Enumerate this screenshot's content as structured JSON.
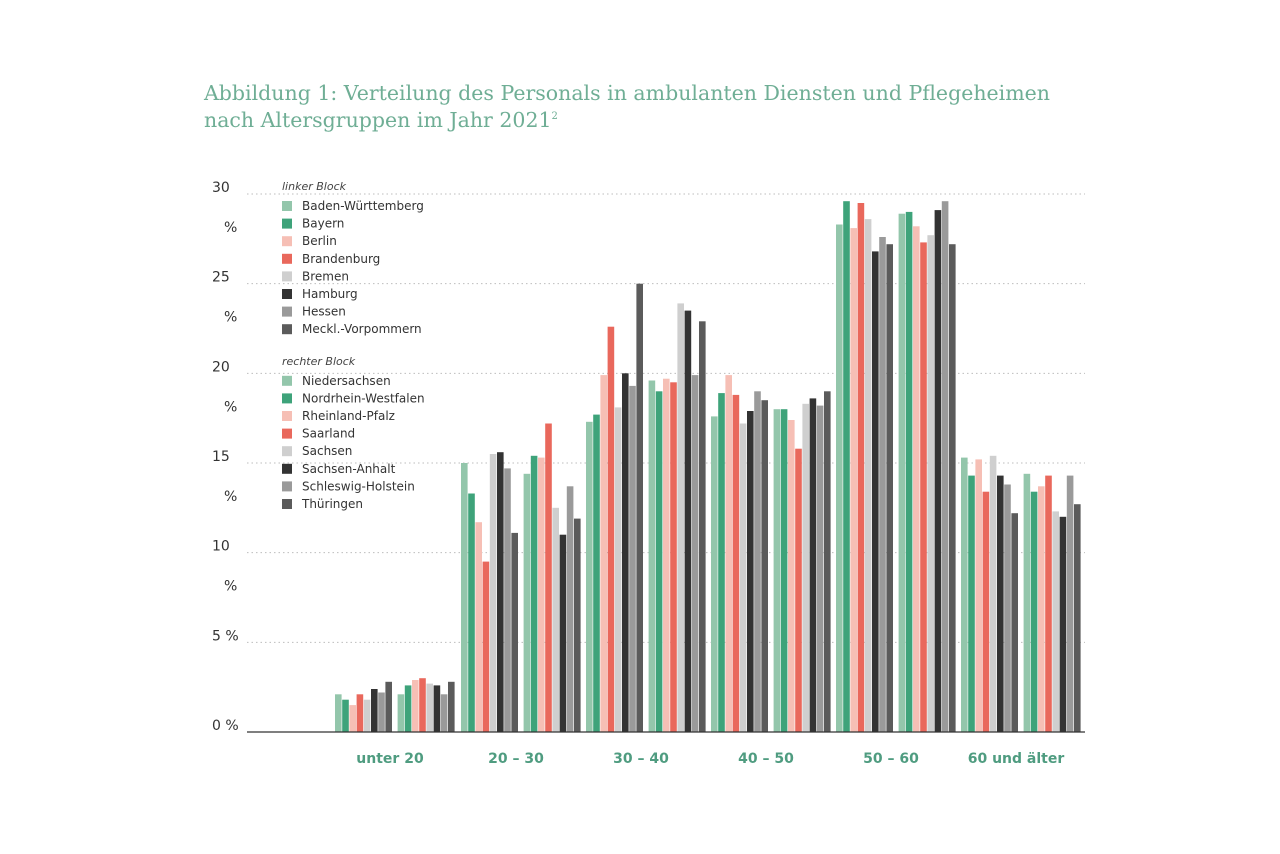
{
  "figure": {
    "title_main": "Abbildung 1: Verteilung des Personals in ambulanten Diensten und Pflegeheimen nach Altersgruppen im Jahr 2021",
    "title_sup": "2"
  },
  "chart_data": {
    "type": "bar",
    "title": "Abbildung 1: Verteilung des Personals in ambulanten Diensten und Pflegeheimen nach Altersgruppen im Jahr 2021",
    "categories": [
      "unter 20",
      "20 – 30",
      "30 – 40",
      "40 – 50",
      "50 – 60",
      "60 und älter"
    ],
    "ylim": [
      0,
      30
    ],
    "y_ticks": [
      {
        "value": 30,
        "label": "30 %"
      },
      {
        "value": 25,
        "label": "25 %"
      },
      {
        "value": 20,
        "label": "20 %"
      },
      {
        "value": 15,
        "label": "15 %"
      },
      {
        "value": 10,
        "label": "10 %"
      },
      {
        "value": 5,
        "label": "5 %"
      },
      {
        "value": 0,
        "label": "0 %"
      }
    ],
    "grid": "horizontal dotted",
    "legend_position": "top-left",
    "blocks": [
      {
        "legend_title": "linker Block",
        "series": [
          {
            "name": "Baden-Württemberg",
            "color": "#93c6ab",
            "values": [
              2.1,
              15.0,
              17.3,
              17.6,
              28.3,
              15.3
            ]
          },
          {
            "name": "Bayern",
            "color": "#3ea37a",
            "values": [
              1.8,
              13.3,
              17.7,
              18.9,
              29.6,
              14.3
            ]
          },
          {
            "name": "Berlin",
            "color": "#f6bfb5",
            "values": [
              1.5,
              11.7,
              19.9,
              19.9,
              28.1,
              15.2
            ]
          },
          {
            "name": "Brandenburg",
            "color": "#e9685c",
            "values": [
              2.1,
              9.5,
              22.6,
              18.8,
              29.5,
              13.4
            ]
          },
          {
            "name": "Bremen",
            "color": "#cfcfcf",
            "values": [
              1.8,
              15.5,
              18.1,
              17.2,
              28.6,
              15.4
            ]
          },
          {
            "name": "Hamburg",
            "color": "#333333",
            "values": [
              2.4,
              15.6,
              20.0,
              17.9,
              26.8,
              14.3
            ]
          },
          {
            "name": "Hessen",
            "color": "#9a9a9a",
            "values": [
              2.2,
              14.7,
              19.3,
              19.0,
              27.6,
              13.8
            ]
          },
          {
            "name": "Meckl.-Vorpommern",
            "color": "#5b5b5b",
            "values": [
              2.8,
              11.1,
              25.0,
              18.5,
              27.2,
              12.2
            ]
          }
        ]
      },
      {
        "legend_title": "rechter Block",
        "series": [
          {
            "name": "Niedersachsen",
            "color": "#93c6ab",
            "values": [
              2.1,
              14.4,
              19.6,
              18.0,
              28.9,
              14.4
            ]
          },
          {
            "name": "Nordrhein-Westfalen",
            "color": "#3ea37a",
            "values": [
              2.6,
              15.4,
              19.0,
              18.0,
              29.0,
              13.4
            ]
          },
          {
            "name": "Rheinland-Pfalz",
            "color": "#f6bfb5",
            "values": [
              2.9,
              15.3,
              19.7,
              17.4,
              28.2,
              13.7
            ]
          },
          {
            "name": "Saarland",
            "color": "#e9685c",
            "values": [
              3.0,
              17.2,
              19.5,
              15.8,
              27.3,
              14.3
            ]
          },
          {
            "name": "Sachsen",
            "color": "#cfcfcf",
            "values": [
              2.7,
              12.5,
              23.9,
              18.3,
              27.7,
              12.3
            ]
          },
          {
            "name": "Sachsen-Anhalt",
            "color": "#333333",
            "values": [
              2.6,
              11.0,
              23.5,
              18.6,
              29.1,
              12.0
            ]
          },
          {
            "name": "Schleswig-Holstein",
            "color": "#9a9a9a",
            "values": [
              2.1,
              13.7,
              19.9,
              18.2,
              29.6,
              14.3
            ]
          },
          {
            "name": "Thüringen",
            "color": "#5b5b5b",
            "values": [
              2.8,
              11.9,
              22.9,
              19.0,
              27.2,
              12.7
            ]
          }
        ]
      }
    ]
  }
}
